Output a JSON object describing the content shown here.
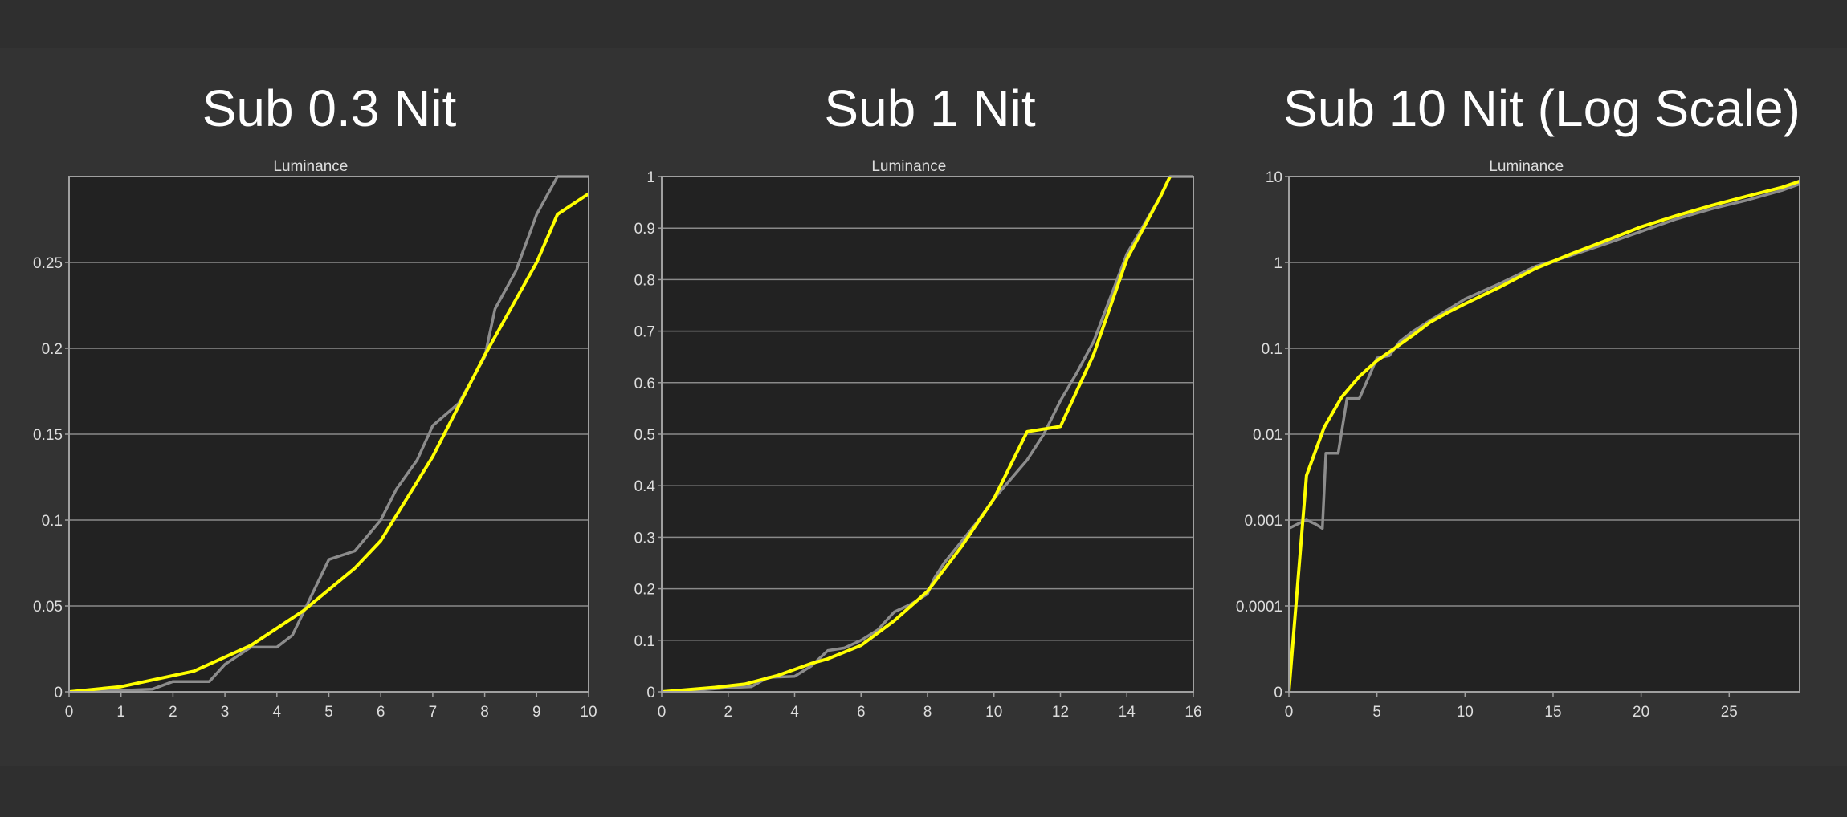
{
  "slide": {
    "background": "#2f2f2f"
  },
  "colors": {
    "plot_background": "#222222",
    "grid": "#8a8a8a",
    "frame": "#a0a0a0",
    "text": "#ffffff",
    "tick_text": "#dddddd",
    "series_measured": "#8c8c8c",
    "series_target": "#ffff00"
  },
  "chart_data": [
    {
      "type": "line",
      "panel_title": "Sub 0.3 Nit",
      "title": "Luminance",
      "xlabel": "",
      "ylabel": "",
      "xlim": [
        0,
        10
      ],
      "ylim": [
        0,
        0.3
      ],
      "x_ticks": [
        "0",
        "1",
        "2",
        "3",
        "4",
        "5",
        "6",
        "7",
        "8",
        "9",
        "10"
      ],
      "y_ticks": [
        "0",
        "0.05",
        "0.1",
        "0.15",
        "0.2",
        "0.25"
      ],
      "grid": true,
      "scale": "linear",
      "series": [
        {
          "color": "#8c8c8c",
          "x": [
            0,
            0.5,
            1.0,
            1.6,
            2.0,
            2.4,
            2.7,
            3.0,
            3.5,
            4.0,
            4.3,
            5.0,
            5.5,
            6.0,
            6.3,
            6.7,
            7.0,
            7.5,
            8.0,
            8.2,
            8.6,
            9.0,
            9.4,
            10.0
          ],
          "y": [
            0,
            0.0003,
            0.0008,
            0.0015,
            0.006,
            0.006,
            0.006,
            0.016,
            0.026,
            0.026,
            0.033,
            0.077,
            0.082,
            0.1,
            0.118,
            0.135,
            0.155,
            0.168,
            0.195,
            0.223,
            0.245,
            0.278,
            0.3,
            0.3
          ]
        },
        {
          "color": "#ffff00",
          "x": [
            0,
            1,
            2.4,
            3.5,
            4.5,
            5.5,
            6.0,
            7.0,
            8.0,
            9.0,
            9.4,
            10.0
          ],
          "y": [
            0,
            0.003,
            0.012,
            0.027,
            0.047,
            0.072,
            0.088,
            0.137,
            0.196,
            0.25,
            0.278,
            0.29
          ]
        }
      ]
    },
    {
      "type": "line",
      "panel_title": "Sub 1 Nit",
      "title": "Luminance",
      "xlabel": "",
      "ylabel": "",
      "xlim": [
        0,
        16
      ],
      "ylim": [
        0,
        1
      ],
      "x_ticks": [
        "0",
        "2",
        "4",
        "6",
        "8",
        "10",
        "12",
        "14",
        "16"
      ],
      "y_ticks": [
        "0",
        "0.1",
        "0.2",
        "0.3",
        "0.4",
        "0.5",
        "0.6",
        "0.7",
        "0.8",
        "0.9",
        "1"
      ],
      "grid": true,
      "scale": "linear",
      "series": [
        {
          "color": "#8c8c8c",
          "x": [
            0,
            1,
            2,
            2.7,
            3.2,
            4.0,
            4.5,
            5.0,
            5.5,
            6.0,
            6.5,
            7.0,
            7.5,
            8.0,
            8.2,
            8.5,
            9.0,
            9.5,
            10.0,
            11.0,
            11.5,
            12.0,
            12.5,
            13.0,
            14.0,
            15.0,
            15.3,
            16.0
          ],
          "y": [
            0,
            0.003,
            0.008,
            0.01,
            0.028,
            0.03,
            0.05,
            0.08,
            0.085,
            0.1,
            0.12,
            0.155,
            0.17,
            0.19,
            0.22,
            0.25,
            0.29,
            0.33,
            0.375,
            0.45,
            0.5,
            0.565,
            0.62,
            0.68,
            0.85,
            0.96,
            1.0,
            1.0
          ]
        },
        {
          "color": "#ffff00",
          "x": [
            0,
            1.5,
            2.5,
            3.5,
            4.5,
            5.0,
            6.0,
            7.0,
            8.0,
            9.0,
            10.0,
            11.0,
            12.0,
            13.0,
            14.0,
            15.0,
            15.3
          ],
          "y": [
            0,
            0.008,
            0.015,
            0.032,
            0.055,
            0.064,
            0.09,
            0.138,
            0.195,
            0.28,
            0.375,
            0.505,
            0.515,
            0.655,
            0.84,
            0.96,
            1.0
          ]
        }
      ]
    },
    {
      "type": "line",
      "panel_title": "Sub 10 Nit (Log Scale)",
      "title": "Luminance",
      "xlabel": "",
      "ylabel": "",
      "xlim": [
        0,
        29
      ],
      "ylim": [
        0,
        10
      ],
      "x_ticks": [
        "0",
        "5",
        "10",
        "15",
        "20",
        "25"
      ],
      "y_ticks": [
        "0",
        "0.0001",
        "0.001",
        "0.01",
        "0.1",
        "1",
        "10"
      ],
      "grid": true,
      "scale": "log",
      "series": [
        {
          "color": "#8c8c8c",
          "x": [
            0,
            0.5,
            1.0,
            1.5,
            1.9,
            2.1,
            2.6,
            2.8,
            3.3,
            3.6,
            4.0,
            4.4,
            5.0,
            5.7,
            6.3,
            7.0,
            8.0,
            9.0,
            10.0,
            12.0,
            14.0,
            16.0,
            18.0,
            20.0,
            22.0,
            24.0,
            26.0,
            28.0,
            29.0
          ],
          "y": [
            0.0008,
            0.0009,
            0.001,
            0.0009,
            0.0008,
            0.006,
            0.006,
            0.006,
            0.026,
            0.026,
            0.026,
            0.04,
            0.077,
            0.082,
            0.12,
            0.155,
            0.21,
            0.28,
            0.375,
            0.57,
            0.9,
            1.2,
            1.65,
            2.3,
            3.2,
            4.2,
            5.3,
            6.9,
            8.2
          ]
        },
        {
          "color": "#ffff00",
          "x": [
            0,
            1,
            2,
            3,
            4,
            5,
            6,
            7,
            8,
            9,
            10,
            12,
            14,
            16,
            18,
            20,
            22,
            24,
            26,
            28,
            29
          ],
          "y": [
            0,
            0.0033,
            0.012,
            0.027,
            0.047,
            0.072,
            0.1,
            0.14,
            0.2,
            0.26,
            0.33,
            0.52,
            0.85,
            1.25,
            1.8,
            2.6,
            3.5,
            4.6,
            5.9,
            7.5,
            8.8
          ]
        }
      ]
    }
  ]
}
